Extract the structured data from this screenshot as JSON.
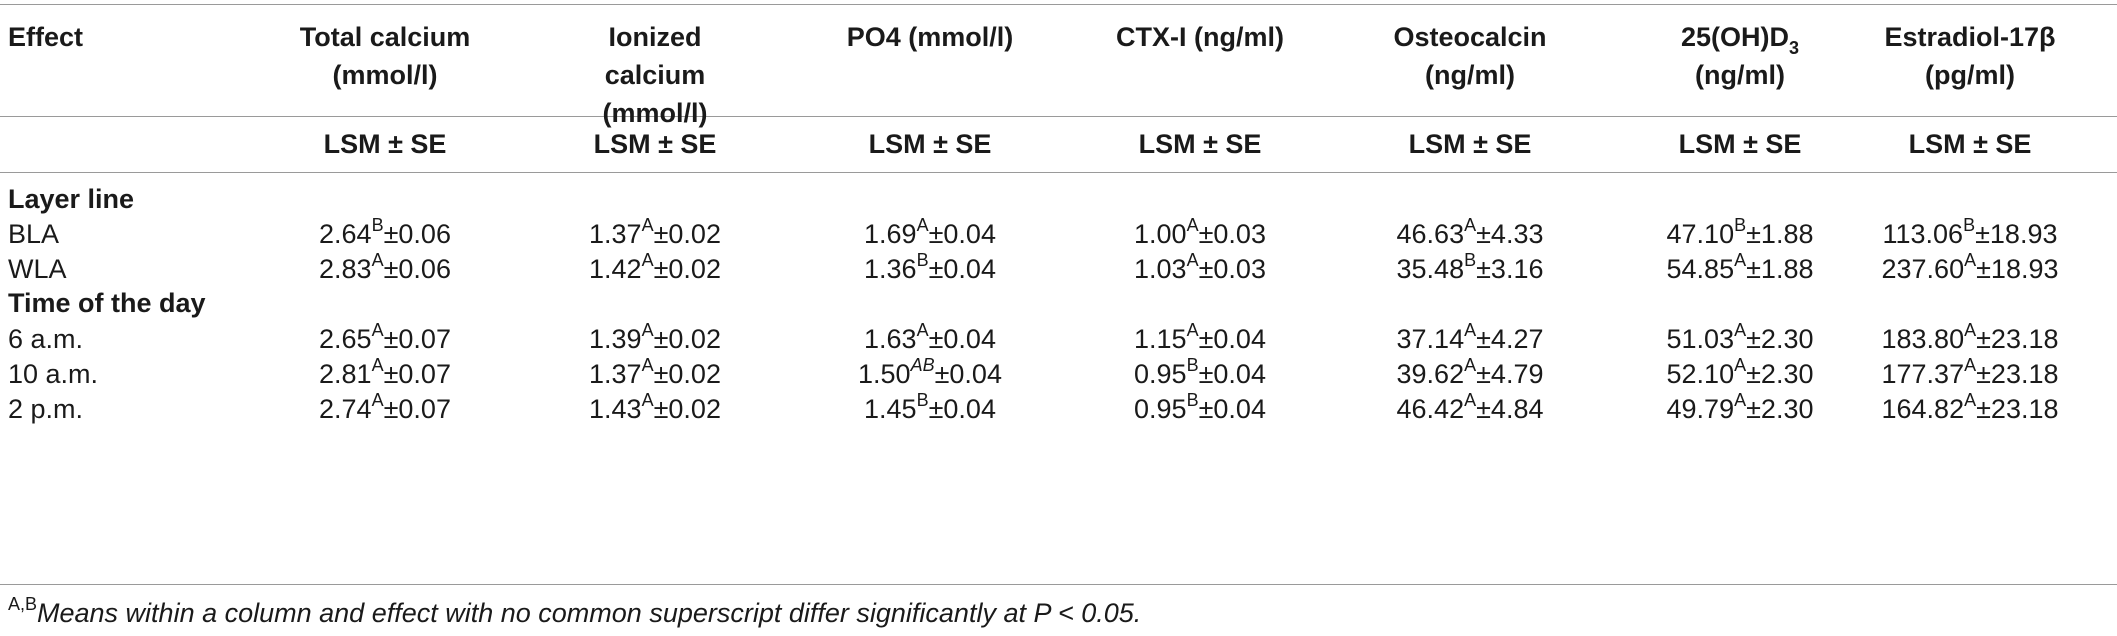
{
  "headers": {
    "effect": "Effect",
    "col1": [
      "Total calcium",
      "(mmol/l)"
    ],
    "col2": [
      "Ionized",
      "calcium",
      "(mmol/l)"
    ],
    "col3": [
      "PO4 (mmol/l)"
    ],
    "col4": [
      "CTX-I (ng/ml)"
    ],
    "col5": [
      "Osteocalcin",
      "(ng/ml)"
    ],
    "col6_main": "25(OH)D",
    "col6_sub": "3",
    "col6_unit": "(ng/ml)",
    "col7": [
      "Estradiol-17β",
      "(pg/ml)"
    ],
    "stat": "LSM ± SE"
  },
  "groups": [
    {
      "title": "Layer line",
      "rows": [
        {
          "label": "BLA",
          "cells": [
            {
              "v": "2.64",
              "s": "B",
              "e": "±0.06"
            },
            {
              "v": "1.37",
              "s": "A",
              "e": "±0.02"
            },
            {
              "v": "1.69",
              "s": "A",
              "e": "±0.04"
            },
            {
              "v": "1.00",
              "s": "A",
              "e": "±0.03"
            },
            {
              "v": "46.63",
              "s": "A",
              "e": "±4.33"
            },
            {
              "v": "47.10",
              "s": "B",
              "e": "±1.88"
            },
            {
              "v": "113.06",
              "s": "B",
              "e": "±18.93"
            }
          ]
        },
        {
          "label": "WLA",
          "cells": [
            {
              "v": "2.83",
              "s": "A",
              "e": "±0.06"
            },
            {
              "v": "1.42",
              "s": "A",
              "e": "±0.02"
            },
            {
              "v": "1.36",
              "s": "B",
              "e": "±0.04"
            },
            {
              "v": "1.03",
              "s": "A",
              "e": "±0.03"
            },
            {
              "v": "35.48",
              "s": "B",
              "e": "±3.16"
            },
            {
              "v": "54.85",
              "s": "A",
              "e": "±1.88"
            },
            {
              "v": "237.60",
              "s": "A",
              "e": "±18.93"
            }
          ]
        }
      ]
    },
    {
      "title": "Time of the day",
      "rows": [
        {
          "label": "6 a.m.",
          "cells": [
            {
              "v": "2.65",
              "s": "A",
              "e": "±0.07"
            },
            {
              "v": "1.39",
              "s": "A",
              "e": "±0.02"
            },
            {
              "v": "1.63",
              "s": "A",
              "e": "±0.04"
            },
            {
              "v": "1.15",
              "s": "A",
              "e": "±0.04"
            },
            {
              "v": "37.14",
              "s": "A",
              "e": "±4.27"
            },
            {
              "v": "51.03",
              "s": "A",
              "e": "±2.30"
            },
            {
              "v": "183.80",
              "s": "A",
              "e": "±23.18"
            }
          ]
        },
        {
          "label": "10 a.m.",
          "cells": [
            {
              "v": "2.81",
              "s": "A",
              "e": "±0.07"
            },
            {
              "v": "1.37",
              "s": "A",
              "e": "±0.02"
            },
            {
              "v": "1.50",
              "s": "AB",
              "e": "±0.04",
              "italic": true
            },
            {
              "v": "0.95",
              "s": "B",
              "e": "±0.04"
            },
            {
              "v": "39.62",
              "s": "A",
              "e": "±4.79"
            },
            {
              "v": "52.10",
              "s": "A",
              "e": "±2.30"
            },
            {
              "v": "177.37",
              "s": "A",
              "e": "±23.18"
            }
          ]
        },
        {
          "label": "2 p.m.",
          "cells": [
            {
              "v": "2.74",
              "s": "A",
              "e": "±0.07"
            },
            {
              "v": "1.43",
              "s": "A",
              "e": "±0.02"
            },
            {
              "v": "1.45",
              "s": "B",
              "e": "±0.04"
            },
            {
              "v": "0.95",
              "s": "B",
              "e": "±0.04"
            },
            {
              "v": "46.42",
              "s": "A",
              "e": "±4.84"
            },
            {
              "v": "49.79",
              "s": "A",
              "e": "±2.30"
            },
            {
              "v": "164.82",
              "s": "A",
              "e": "±23.18"
            }
          ]
        }
      ]
    }
  ],
  "footnote": {
    "marks": "A,B",
    "text": "Means within a column and effect with no common superscript differ significantly at P < 0.05."
  }
}
